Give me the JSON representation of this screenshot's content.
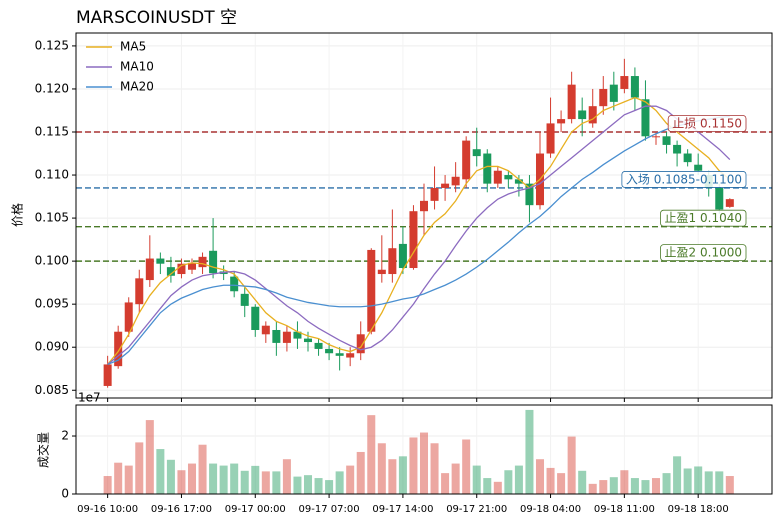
{
  "chart_data": {
    "type": "candlestick",
    "title": "MARSCOINUSDT 空",
    "ylabel": "价格",
    "x": [
      "09-16 10:00",
      "09-16 11:00",
      "09-16 12:00",
      "09-16 13:00",
      "09-16 14:00",
      "09-16 15:00",
      "09-16 16:00",
      "09-16 17:00",
      "09-16 18:00",
      "09-16 19:00",
      "09-16 20:00",
      "09-16 21:00",
      "09-16 22:00",
      "09-16 23:00",
      "09-17 00:00",
      "09-17 01:00",
      "09-17 02:00",
      "09-17 03:00",
      "09-17 04:00",
      "09-17 05:00",
      "09-17 06:00",
      "09-17 07:00",
      "09-17 08:00",
      "09-17 09:00",
      "09-17 10:00",
      "09-17 11:00",
      "09-17 12:00",
      "09-17 13:00",
      "09-17 14:00",
      "09-17 15:00",
      "09-17 16:00",
      "09-17 17:00",
      "09-17 18:00",
      "09-17 19:00",
      "09-17 20:00",
      "09-17 21:00",
      "09-17 22:00",
      "09-17 23:00",
      "09-18 00:00",
      "09-18 01:00",
      "09-18 02:00",
      "09-18 03:00",
      "09-18 04:00",
      "09-18 05:00",
      "09-18 06:00",
      "09-18 07:00",
      "09-18 08:00",
      "09-18 09:00",
      "09-18 10:00",
      "09-18 11:00",
      "09-18 12:00",
      "09-18 13:00",
      "09-18 14:00",
      "09-18 15:00",
      "09-18 16:00",
      "09-18 17:00",
      "09-18 18:00",
      "09-18 19:00",
      "09-18 20:00",
      "09-18 21:00"
    ],
    "xticks": [
      "09-16 10:00",
      "09-16 17:00",
      "09-17 00:00",
      "09-17 07:00",
      "09-17 14:00",
      "09-17 21:00",
      "09-18 04:00",
      "09-18 11:00",
      "09-18 18:00"
    ],
    "open": [
      0.0855,
      0.0878,
      0.0918,
      0.095,
      0.0978,
      0.1003,
      0.0993,
      0.0985,
      0.099,
      0.0993,
      0.1012,
      0.0988,
      0.0982,
      0.0962,
      0.0947,
      0.0915,
      0.092,
      0.0905,
      0.0918,
      0.091,
      0.0905,
      0.0898,
      0.0893,
      0.0888,
      0.0893,
      0.0918,
      0.0985,
      0.0985,
      0.102,
      0.0992,
      0.1058,
      0.107,
      0.1085,
      0.1088,
      0.1095,
      0.113,
      0.1125,
      0.109,
      0.11,
      0.1095,
      0.109,
      0.1065,
      0.1125,
      0.116,
      0.1165,
      0.1175,
      0.116,
      0.118,
      0.1205,
      0.12,
      0.1215,
      0.1188,
      0.1145,
      0.1145,
      0.1135,
      0.1125,
      0.1112,
      0.11,
      0.1085,
      0.1063
    ],
    "high": [
      0.089,
      0.0925,
      0.0958,
      0.099,
      0.103,
      0.101,
      0.1005,
      0.1003,
      0.1003,
      0.101,
      0.105,
      0.0995,
      0.0988,
      0.097,
      0.095,
      0.093,
      0.093,
      0.0925,
      0.093,
      0.0918,
      0.091,
      0.0905,
      0.09,
      0.09,
      0.093,
      0.1015,
      0.103,
      0.106,
      0.104,
      0.1065,
      0.109,
      0.111,
      0.11,
      0.1115,
      0.1145,
      0.1155,
      0.113,
      0.111,
      0.1105,
      0.11,
      0.11,
      0.115,
      0.119,
      0.1175,
      0.122,
      0.119,
      0.12,
      0.1215,
      0.122,
      0.1235,
      0.1225,
      0.121,
      0.115,
      0.115,
      0.114,
      0.113,
      0.1125,
      0.1105,
      0.109,
      0.1073
    ],
    "low": [
      0.0853,
      0.0875,
      0.0912,
      0.094,
      0.097,
      0.0985,
      0.0975,
      0.098,
      0.0985,
      0.0985,
      0.098,
      0.0978,
      0.0958,
      0.0935,
      0.0912,
      0.0905,
      0.089,
      0.0895,
      0.0898,
      0.0895,
      0.089,
      0.0885,
      0.0873,
      0.0878,
      0.0885,
      0.0915,
      0.0975,
      0.0975,
      0.0985,
      0.099,
      0.103,
      0.106,
      0.107,
      0.108,
      0.1085,
      0.111,
      0.108,
      0.1085,
      0.1085,
      0.1075,
      0.1045,
      0.106,
      0.112,
      0.115,
      0.116,
      0.1145,
      0.1155,
      0.117,
      0.1175,
      0.1195,
      0.1175,
      0.114,
      0.1135,
      0.1125,
      0.111,
      0.111,
      0.11,
      0.1075,
      0.1055,
      0.1062
    ],
    "close": [
      0.088,
      0.0918,
      0.0952,
      0.098,
      0.1003,
      0.0997,
      0.0983,
      0.0997,
      0.0998,
      0.1005,
      0.0986,
      0.0985,
      0.0965,
      0.0948,
      0.092,
      0.0925,
      0.0905,
      0.0918,
      0.091,
      0.0906,
      0.0898,
      0.0893,
      0.089,
      0.0893,
      0.0915,
      0.1013,
      0.099,
      0.1015,
      0.0992,
      0.1058,
      0.107,
      0.1085,
      0.109,
      0.1098,
      0.114,
      0.1122,
      0.109,
      0.1105,
      0.1095,
      0.109,
      0.1065,
      0.1125,
      0.116,
      0.1165,
      0.1205,
      0.1165,
      0.118,
      0.12,
      0.1185,
      0.1215,
      0.119,
      0.1145,
      0.1145,
      0.1135,
      0.1125,
      0.1115,
      0.1105,
      0.1085,
      0.106,
      0.1072
    ],
    "up_color": "#d43c2f",
    "down_color": "#1a9a5c",
    "series": [
      {
        "name": "MA5",
        "color": "#e8b020",
        "values": [
          0.088,
          0.0895,
          0.0915,
          0.094,
          0.096,
          0.0975,
          0.0985,
          0.0995,
          0.0998,
          0.0997,
          0.0993,
          0.099,
          0.0985,
          0.097,
          0.0955,
          0.094,
          0.093,
          0.0925,
          0.0918,
          0.0913,
          0.091,
          0.0903,
          0.0898,
          0.0895,
          0.09,
          0.092,
          0.094,
          0.0965,
          0.099,
          0.101,
          0.103,
          0.1045,
          0.1055,
          0.107,
          0.109,
          0.1105,
          0.111,
          0.111,
          0.1105,
          0.1095,
          0.1085,
          0.1095,
          0.111,
          0.113,
          0.115,
          0.116,
          0.1165,
          0.1175,
          0.118,
          0.1185,
          0.119,
          0.1185,
          0.1175,
          0.116,
          0.115,
          0.114,
          0.113,
          0.112,
          0.1105,
          0.1095
        ]
      },
      {
        "name": "MA10",
        "color": "#8c6bc0",
        "values": [
          0.088,
          0.089,
          0.09,
          0.0915,
          0.093,
          0.0945,
          0.096,
          0.097,
          0.0978,
          0.0983,
          0.0985,
          0.0987,
          0.0988,
          0.0985,
          0.0978,
          0.0968,
          0.0958,
          0.0948,
          0.094,
          0.093,
          0.0922,
          0.0915,
          0.0908,
          0.0902,
          0.0897,
          0.09,
          0.0908,
          0.092,
          0.0935,
          0.095,
          0.0968,
          0.0985,
          0.1,
          0.1018,
          0.1035,
          0.105,
          0.1062,
          0.1072,
          0.1078,
          0.1082,
          0.1085,
          0.109,
          0.11,
          0.111,
          0.112,
          0.113,
          0.114,
          0.115,
          0.116,
          0.117,
          0.1175,
          0.118,
          0.118,
          0.1175,
          0.1165,
          0.116,
          0.115,
          0.114,
          0.113,
          0.1118
        ]
      },
      {
        "name": "MA20",
        "color": "#4a8fd0",
        "values": [
          0.088,
          0.0885,
          0.0895,
          0.091,
          0.0925,
          0.094,
          0.095,
          0.0957,
          0.0962,
          0.0967,
          0.097,
          0.0972,
          0.0972,
          0.0971,
          0.097,
          0.0967,
          0.0963,
          0.0958,
          0.0955,
          0.0952,
          0.095,
          0.0948,
          0.0947,
          0.0947,
          0.0947,
          0.0948,
          0.095,
          0.0953,
          0.0956,
          0.0958,
          0.0962,
          0.0967,
          0.0972,
          0.0978,
          0.0985,
          0.0993,
          0.1002,
          0.1012,
          0.1022,
          0.1033,
          0.1043,
          0.1052,
          0.1063,
          0.1075,
          0.1085,
          0.1095,
          0.1103,
          0.1112,
          0.112,
          0.1128,
          0.1135,
          0.1142,
          0.1148,
          0.1153,
          0.1157,
          0.116,
          0.1163,
          0.1165,
          0.1167,
          0.1168
        ]
      }
    ],
    "ylim": [
      0.0841,
      0.1265
    ],
    "yticks": [
      0.085,
      {
        "value": 0.09,
        "label": "0.090"
      },
      0.095,
      {
        "value": 0.1,
        "label": "0.100"
      },
      0.105,
      {
        "value": 0.11,
        "label": "0.110"
      },
      0.115,
      {
        "value": 0.12,
        "label": "0.120"
      },
      0.125
    ],
    "grid": true,
    "legend": "upper left",
    "levels": [
      {
        "label": "止损 0.1150",
        "value": 0.115,
        "color": "#a83232"
      },
      {
        "label": "入场 0.1085-0.1100",
        "value": 0.1085,
        "color": "#2a6fa8"
      },
      {
        "label": "止盈1 0.1040",
        "value": 0.104,
        "color": "#4a7a28"
      },
      {
        "label": "止盈2 0.1000",
        "value": 0.1,
        "color": "#4a7a28"
      }
    ],
    "volume": {
      "ylabel": "成交量",
      "offset_label": "1e7",
      "values": [
        0.62,
        1.08,
        0.98,
        1.78,
        2.55,
        1.55,
        1.18,
        0.82,
        1.05,
        1.7,
        1.05,
        0.98,
        1.05,
        0.8,
        0.97,
        0.78,
        0.78,
        1.2,
        0.6,
        0.65,
        0.55,
        0.48,
        0.78,
        0.98,
        1.45,
        2.72,
        1.75,
        1.2,
        1.3,
        1.95,
        2.12,
        1.75,
        0.72,
        1.05,
        1.88,
        0.98,
        0.55,
        0.42,
        0.82,
        0.98,
        2.9,
        1.2,
        0.9,
        0.72,
        1.98,
        0.8,
        0.35,
        0.48,
        0.58,
        0.82,
        0.55,
        0.48,
        0.55,
        0.72,
        1.3,
        0.88,
        0.95,
        0.78,
        0.78,
        0.62
      ],
      "ylim": [
        0,
        3.07
      ],
      "yticks": [
        0,
        2
      ]
    }
  }
}
